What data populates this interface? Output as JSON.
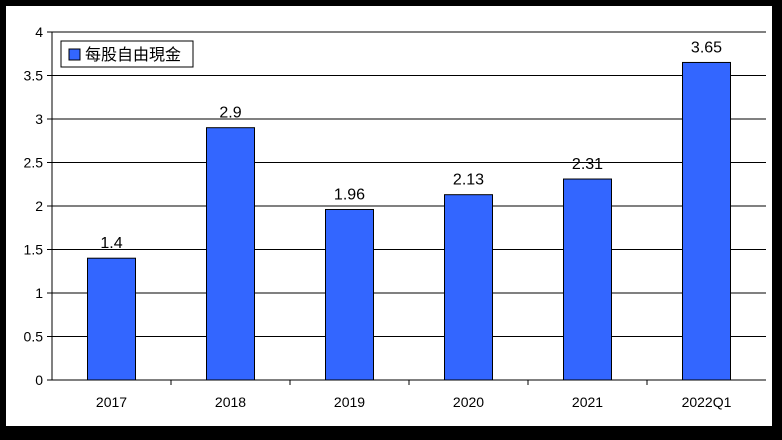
{
  "chart_data": {
    "type": "bar",
    "categories": [
      "2017",
      "2018",
      "2019",
      "2020",
      "2021",
      "2022Q1"
    ],
    "series": [
      {
        "name": "每股自由現金",
        "values": [
          1.4,
          2.9,
          1.96,
          2.13,
          2.31,
          3.65
        ]
      }
    ],
    "data_labels": [
      "1.4",
      "2.9",
      "1.96",
      "2.13",
      "2.31",
      "3.65"
    ],
    "y_ticks": [
      "0",
      "0.5",
      "1",
      "1.5",
      "2",
      "2.5",
      "3",
      "3.5",
      "4"
    ],
    "ylim": [
      0,
      4
    ],
    "grid": true,
    "legend_position": "top-left",
    "bar_color": "#3366ff",
    "background": "#ffffff",
    "border_color": "#000000"
  }
}
